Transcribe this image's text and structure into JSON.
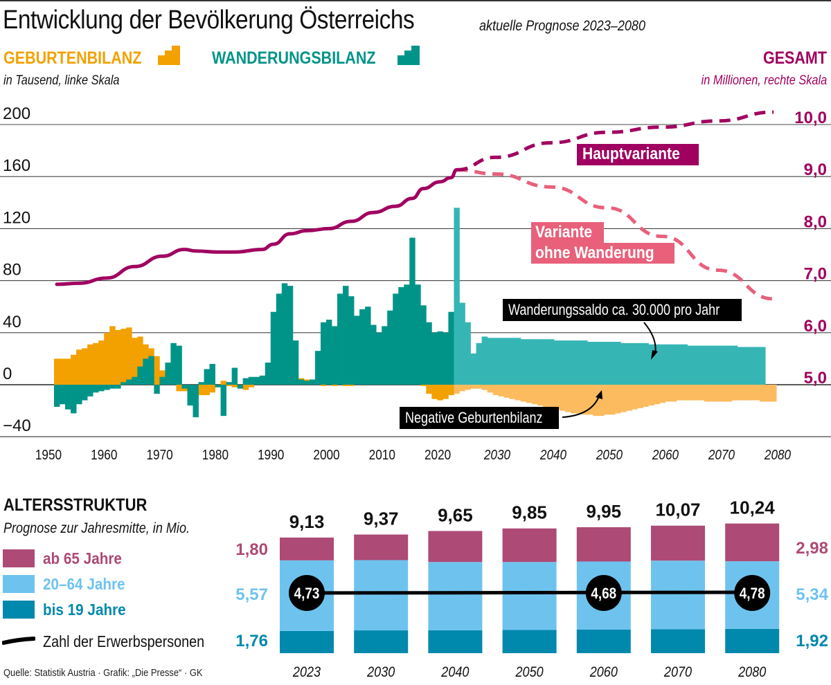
{
  "header": {
    "title": "Entwicklung der Bevölkerung Österreichs",
    "subtitle": "aktuelle Prognose 2023–2080"
  },
  "legend": {
    "births_label": "GEBURTENBILANZ",
    "migration_label": "WANDERUNGSBILANZ",
    "left_scale_note": "in Tausend, linke Skala",
    "total_label": "GESAMT",
    "right_scale_note": "in Millionen, rechte Skala"
  },
  "colors": {
    "births": "#f2a100",
    "births_forecast": "#fcbb5e",
    "migration": "#009488",
    "migration_forecast": "#36b5b5",
    "total": "#a0005f",
    "no_migration": "#e8607a",
    "age65": "#ad4a76",
    "age20_64": "#6ec3ee",
    "age0_19": "#0088ad"
  },
  "annotations": {
    "main_variant": "Hauptvariante",
    "no_migration_variant_line1": "Variante",
    "no_migration_variant_line2": "ohne Wanderung",
    "migration_note": "Wanderungssaldo ca. 30.000 pro Jahr",
    "births_note": "Negative Geburtenbilanz"
  },
  "chart_data": [
    {
      "type": "bar",
      "title": "Entwicklung der Bevölkerung Österreichs",
      "subtitle": "aktuelle Prognose 2023–2080",
      "left_axis": {
        "label": "in Tausend, linke Skala",
        "ylim": [
          -40,
          200
        ],
        "ticks": [
          "200",
          "160",
          "120",
          "80",
          "40",
          "0",
          "−40"
        ],
        "tick_values": [
          200,
          160,
          120,
          80,
          40,
          0,
          -40
        ]
      },
      "right_axis": {
        "label": "in Millionen, rechte Skala",
        "ylim": [
          3.4,
          10.0
        ],
        "ticks": [
          "10,0",
          "9,0",
          "8,0",
          "7,0",
          "6,0",
          "5,0"
        ],
        "tick_values": [
          10,
          9,
          8,
          7,
          6,
          5
        ]
      },
      "x_ticks": [
        "1950",
        "1960",
        "1970",
        "1980",
        "1990",
        "2000",
        "2010",
        "2020",
        "2030",
        "2040",
        "2050",
        "2060",
        "2070",
        "2080"
      ],
      "x_tick_values": [
        1950,
        1960,
        1970,
        1980,
        1990,
        2000,
        2010,
        2020,
        2030,
        2040,
        2050,
        2060,
        2070,
        2080
      ],
      "forecast_start": 2023,
      "grid": true,
      "series": [
        {
          "name": "Geburtenbilanz",
          "unit": "Tausend",
          "axis": "left",
          "years_start": 1951,
          "values": [
            20,
            20,
            20,
            23,
            27,
            28,
            31,
            32,
            34,
            40,
            45,
            42,
            43,
            44,
            36,
            37,
            31,
            28,
            22,
            11,
            4,
            2,
            -5,
            -5,
            -8,
            -10,
            -8,
            -8,
            -6,
            -1,
            3,
            -1,
            -2,
            -2,
            -4,
            -2,
            0,
            2,
            4,
            7,
            8,
            7,
            8,
            9,
            5,
            4,
            1,
            0,
            -1,
            0,
            -1,
            0,
            -1,
            -1,
            0,
            1,
            1,
            2,
            1,
            2,
            1,
            2,
            3,
            2,
            1,
            0,
            -1,
            -7,
            -11,
            -12,
            -11,
            -8,
            -7,
            -5,
            -4,
            -3,
            -3,
            -4,
            -6,
            -8,
            -9,
            -10,
            -11,
            -12,
            -13,
            -14,
            -15,
            -16,
            -17,
            -18,
            -19,
            -20,
            -21,
            -22,
            -22,
            -23,
            -23,
            -24,
            -24,
            -23,
            -23,
            -22,
            -21,
            -20,
            -19,
            -18,
            -17,
            -16,
            -15,
            -14,
            -13,
            -13,
            -12,
            -12,
            -12,
            -12,
            -12,
            -13,
            -13,
            -13,
            -13,
            -13,
            -12,
            -12,
            -12,
            -12,
            -12,
            -13,
            -13,
            -13
          ]
        },
        {
          "name": "Wanderungsbilanz",
          "unit": "Tausend",
          "axis": "left",
          "years_start": 1951,
          "values": [
            -17,
            -15,
            -19,
            -22,
            -15,
            -12,
            -9,
            -6,
            -5,
            -4,
            -3,
            -3,
            2,
            4,
            6,
            14,
            20,
            22,
            -7,
            6,
            17,
            32,
            30,
            -3,
            -16,
            -25,
            2,
            12,
            16,
            -2,
            -24,
            2,
            13,
            -3,
            5,
            6,
            6,
            7,
            17,
            56,
            70,
            78,
            76,
            34,
            4,
            3,
            4,
            26,
            48,
            50,
            45,
            70,
            76,
            68,
            53,
            58,
            60,
            46,
            40,
            45,
            57,
            70,
            75,
            77,
            113,
            77,
            61,
            48,
            40,
            41,
            40,
            56,
            136,
            63,
            48,
            24,
            32,
            37,
            36,
            36,
            36,
            36,
            36,
            36,
            35,
            35,
            35,
            35,
            35,
            35,
            34,
            34,
            34,
            34,
            34,
            34,
            33,
            33,
            33,
            33,
            33,
            33,
            32,
            32,
            32,
            32,
            32,
            31,
            31,
            31,
            31,
            31,
            31,
            31,
            30,
            30,
            30,
            30,
            30,
            30,
            30,
            30,
            30,
            29,
            29,
            29,
            29,
            29
          ]
        },
        {
          "name": "Gesamt",
          "unit": "Millionen",
          "axis": "right",
          "type": "line",
          "points": [
            [
              1951,
              6.93
            ],
            [
              1955,
              6.95
            ],
            [
              1960,
              7.05
            ],
            [
              1965,
              7.27
            ],
            [
              1970,
              7.47
            ],
            [
              1974,
              7.6
            ],
            [
              1976,
              7.57
            ],
            [
              1980,
              7.55
            ],
            [
              1983,
              7.55
            ],
            [
              1988,
              7.6
            ],
            [
              1990,
              7.7
            ],
            [
              1993,
              7.9
            ],
            [
              1996,
              7.96
            ],
            [
              2000,
              8.0
            ],
            [
              2004,
              8.14
            ],
            [
              2008,
              8.31
            ],
            [
              2012,
              8.43
            ],
            [
              2015,
              8.58
            ],
            [
              2017,
              8.77
            ],
            [
              2020,
              8.9
            ],
            [
              2022,
              8.98
            ],
            [
              2023,
              9.13
            ]
          ]
        },
        {
          "name": "Hauptvariante",
          "unit": "Millionen",
          "axis": "right",
          "type": "line-dashed",
          "points": [
            [
              2023,
              9.13
            ],
            [
              2030,
              9.37
            ],
            [
              2040,
              9.65
            ],
            [
              2050,
              9.85
            ],
            [
              2060,
              9.95
            ],
            [
              2070,
              10.07
            ],
            [
              2080,
              10.24
            ]
          ]
        },
        {
          "name": "Variante ohne Wanderung",
          "unit": "Millionen",
          "axis": "right",
          "type": "line-dashed",
          "points": [
            [
              2023,
              9.13
            ],
            [
              2030,
              9.05
            ],
            [
              2040,
              8.8
            ],
            [
              2050,
              8.4
            ],
            [
              2060,
              7.85
            ],
            [
              2070,
              7.2
            ],
            [
              2080,
              6.65
            ]
          ]
        }
      ]
    },
    {
      "type": "bar",
      "stacked": true,
      "title": "ALTERSSTRUKTUR",
      "subtitle": "Prognose zur Jahresmitte, in Mio.",
      "categories": [
        "2023",
        "2030",
        "2040",
        "2050",
        "2060",
        "2070",
        "2080"
      ],
      "totals": [
        "9,13",
        "9,37",
        "9,65",
        "9,85",
        "9,95",
        "10,07",
        "10,24"
      ],
      "total_values": [
        9.13,
        9.37,
        9.65,
        9.85,
        9.95,
        10.07,
        10.24
      ],
      "series": [
        {
          "name": "bis 19 Jahre",
          "values": [
            1.76,
            1.8,
            1.81,
            1.83,
            1.86,
            1.89,
            1.92
          ]
        },
        {
          "name": "20–64 Jahre",
          "values": [
            5.57,
            5.55,
            5.39,
            5.37,
            5.38,
            5.42,
            5.34
          ]
        },
        {
          "name": "ab 65 Jahre",
          "values": [
            1.8,
            2.02,
            2.45,
            2.65,
            2.71,
            2.76,
            2.98
          ]
        }
      ],
      "side_labels_left": {
        "ab65": "1,80",
        "a20_64": "5,57",
        "bis19": "1,76"
      },
      "side_labels_right": {
        "ab65": "2,98",
        "a20_64": "5,34",
        "bis19": "1,92"
      },
      "workforce": {
        "name": "Zahl der Erwerbspersonen",
        "values": [
          4.73,
          null,
          null,
          null,
          4.68,
          null,
          4.78
        ],
        "labels": [
          "4,73",
          "",
          "",
          "",
          "4,68",
          "",
          "4,78"
        ]
      }
    }
  ],
  "altersstruktur": {
    "title": "ALTERSSTRUKTUR",
    "subtitle": "Prognose zur Jahresmitte, in Mio.",
    "legend": [
      "ab 65 Jahre",
      "20–64 Jahre",
      "bis 19 Jahre",
      "Zahl der Erwerbspersonen"
    ]
  },
  "footer": {
    "source": "Quelle: Statistik Austria · Grafik: „Die Presse“ · GK"
  }
}
